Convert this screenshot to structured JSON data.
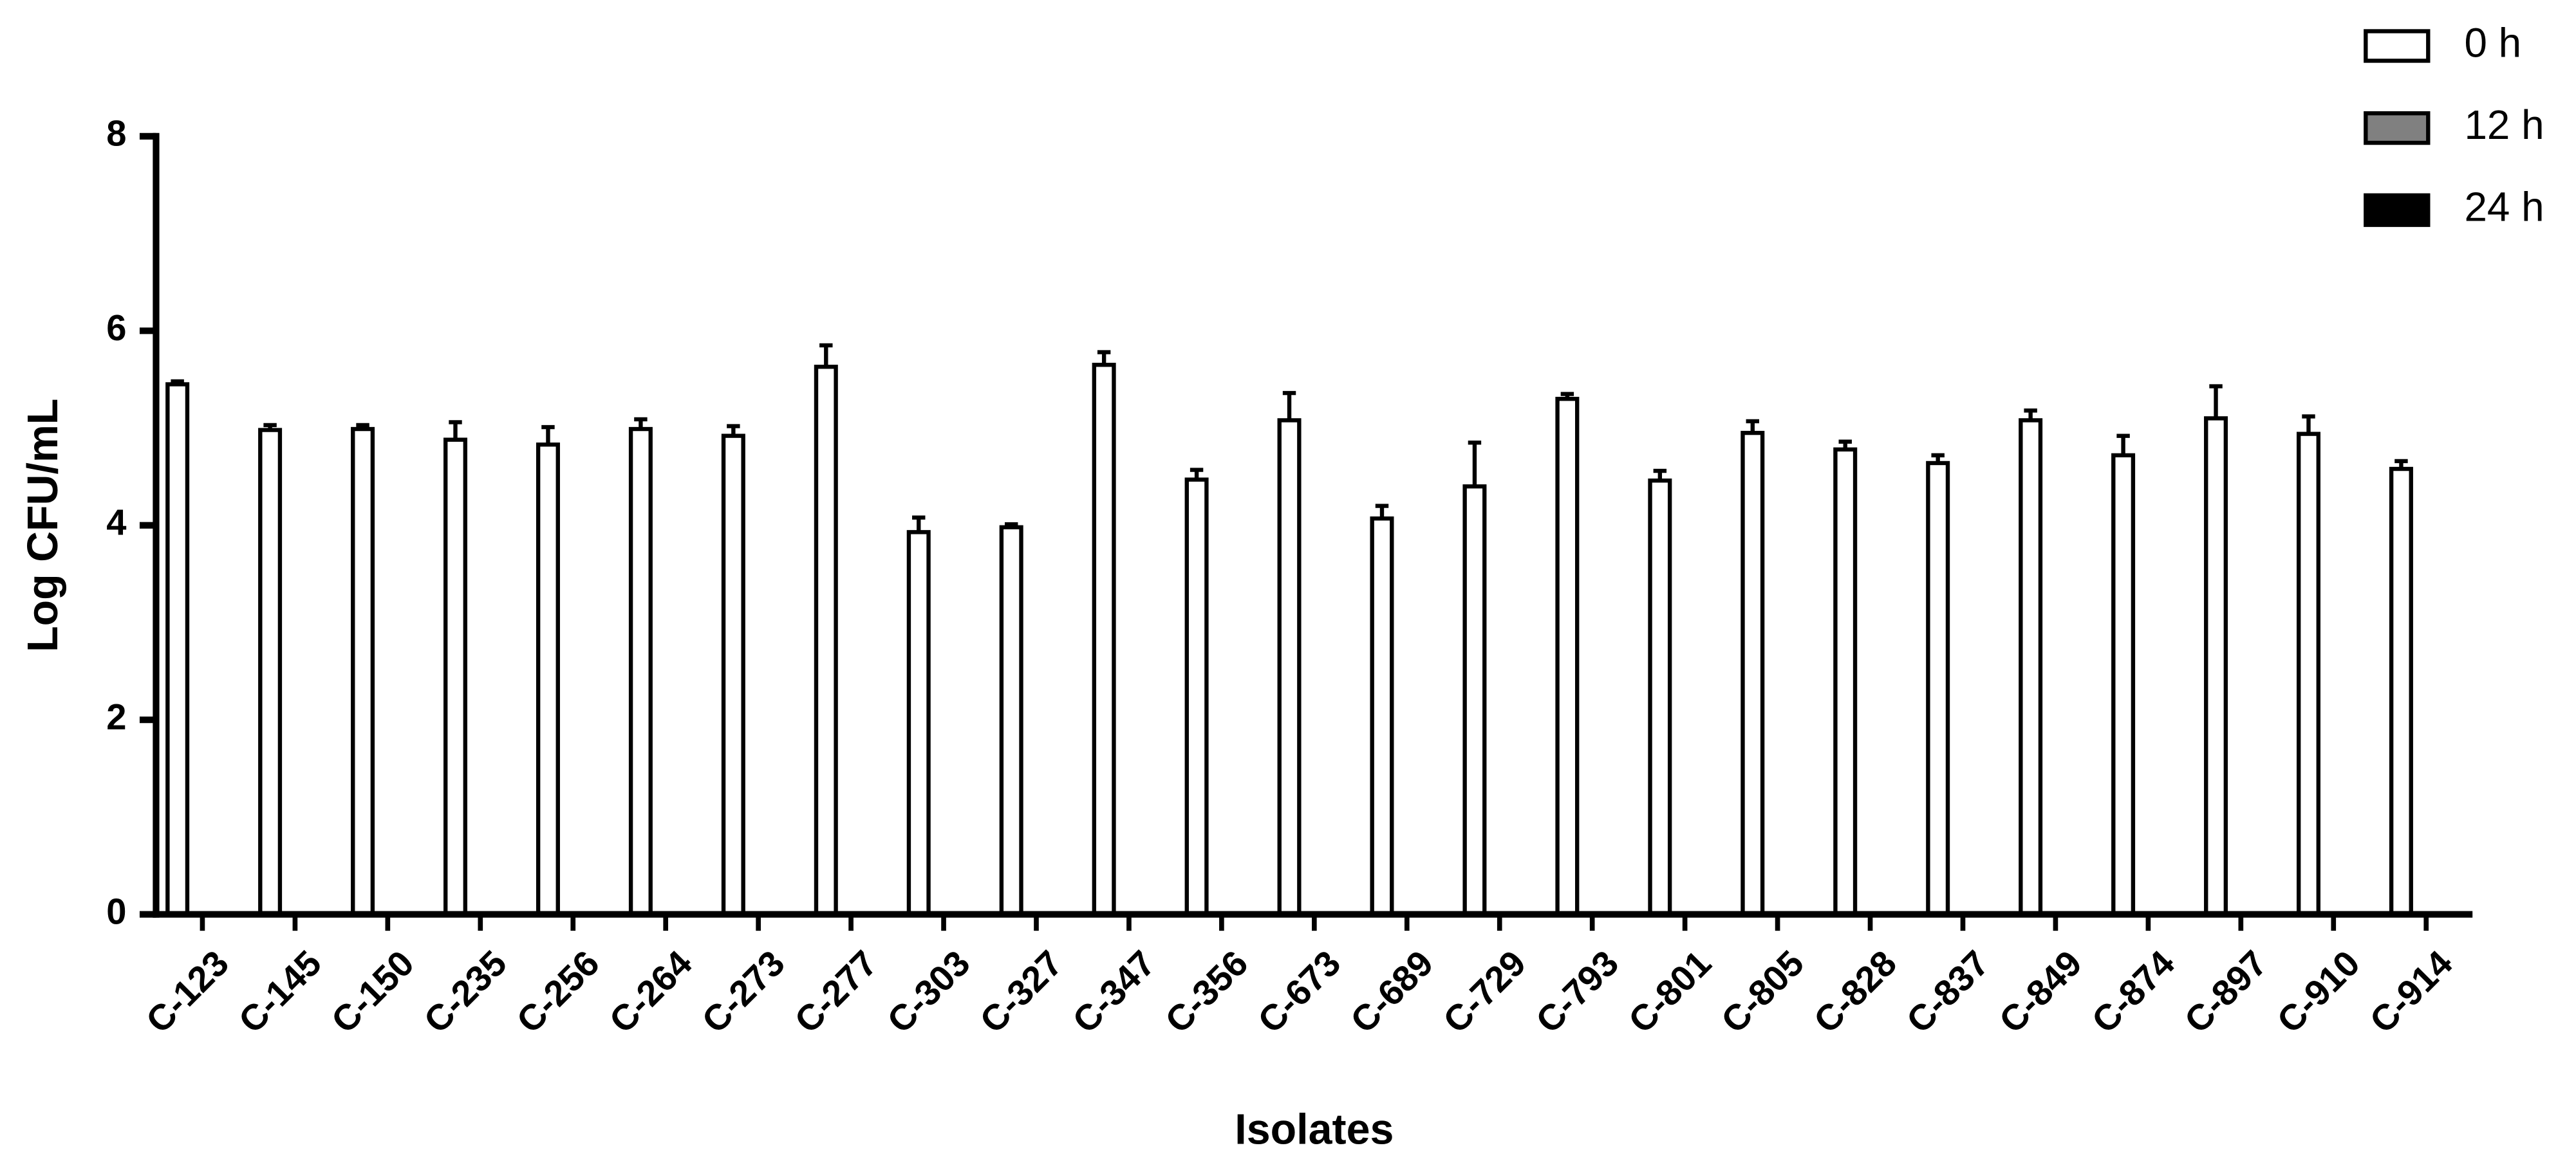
{
  "chart_data": {
    "type": "bar",
    "x_label": "Isolates",
    "y_label": "Log CFU/mL",
    "categories": [
      "C-123",
      "C-145",
      "C-150",
      "C-235",
      "C-256",
      "C-264",
      "C-273",
      "C-277",
      "C-303",
      "C-327",
      "C-347",
      "C-356",
      "C-673",
      "C-689",
      "C-729",
      "C-793",
      "C-801",
      "C-805",
      "C-828",
      "C-837",
      "C-849",
      "C-874",
      "C-897",
      "C-910",
      "C-914"
    ],
    "series": [
      {
        "name": "0 h",
        "color": "#ffffff",
        "values": [
          5.45,
          4.98,
          4.99,
          4.88,
          4.83,
          4.99,
          4.92,
          5.63,
          3.93,
          3.98,
          5.65,
          4.47,
          5.08,
          4.07,
          4.4,
          5.3,
          4.46,
          4.95,
          4.78,
          4.64,
          5.08,
          4.72,
          5.1,
          4.94,
          4.58
        ],
        "errors": [
          0.03,
          0.05,
          0.04,
          0.18,
          0.18,
          0.1,
          0.1,
          0.22,
          0.15,
          0.03,
          0.13,
          0.1,
          0.28,
          0.13,
          0.45,
          0.05,
          0.1,
          0.12,
          0.08,
          0.08,
          0.1,
          0.2,
          0.33,
          0.18,
          0.08
        ]
      },
      {
        "name": "12 h",
        "color": "#808080",
        "values": [
          0,
          0,
          0,
          0,
          0,
          0,
          0,
          0,
          0,
          0,
          0,
          0,
          0,
          0,
          0,
          0,
          0,
          0,
          0,
          0,
          0,
          0,
          0,
          0,
          0
        ]
      },
      {
        "name": "24 h",
        "color": "#000000",
        "values": [
          0,
          0,
          0,
          0,
          0,
          0,
          0,
          0,
          0,
          0,
          0,
          0,
          0,
          0,
          0,
          0,
          0,
          0,
          0,
          0,
          0,
          0,
          0,
          0,
          0
        ]
      }
    ],
    "ylim": [
      0,
      8
    ],
    "yticks": [
      0,
      2,
      4,
      6,
      8
    ],
    "legend": "top-right"
  }
}
